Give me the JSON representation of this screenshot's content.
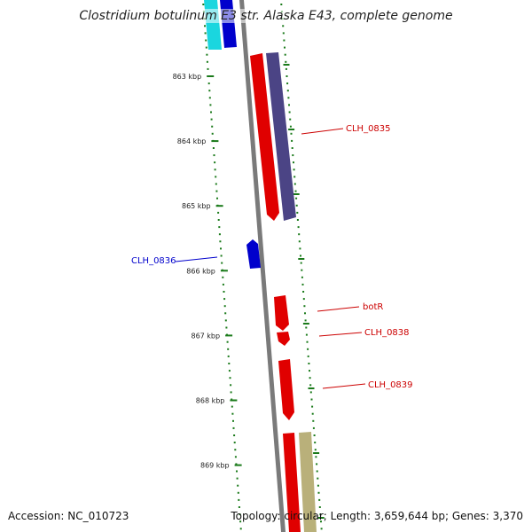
{
  "title": "Clostridium botulinum E3 str. Alaska E43, complete genome",
  "footer": {
    "accession": "Accession: NC_010723",
    "stats": "Topology: circular; Length: 3,659,644 bp; Genes: 3,370"
  },
  "ruler": {
    "ticks": [
      {
        "kbp": 863,
        "label": "863 kbp"
      },
      {
        "kbp": 864,
        "label": "864 kbp"
      },
      {
        "kbp": 865,
        "label": "865 kbp"
      },
      {
        "kbp": 866,
        "label": "866 kbp"
      },
      {
        "kbp": 867,
        "label": "867 kbp"
      },
      {
        "kbp": 868,
        "label": "868 kbp"
      },
      {
        "kbp": 869,
        "label": "869 kbp"
      }
    ]
  },
  "genes": [
    {
      "label": "CLH_0835",
      "color": "#e00000"
    },
    {
      "label": "CLH_0836",
      "color": "#0000cc"
    },
    {
      "label": "botR",
      "color": "#e00000"
    },
    {
      "label": "CLH_0838",
      "color": "#e00000"
    },
    {
      "label": "CLH_0839",
      "color": "#e00000"
    }
  ],
  "colors": {
    "forward_strand": "#e00000",
    "reverse_strand": "#0000cc",
    "tick": "#1a7a1a",
    "backbone": "#7a7a7a",
    "purple_feature": "#4b4485",
    "tan_feature": "#b9b07a",
    "cyan_feature": "#1ad6df"
  }
}
